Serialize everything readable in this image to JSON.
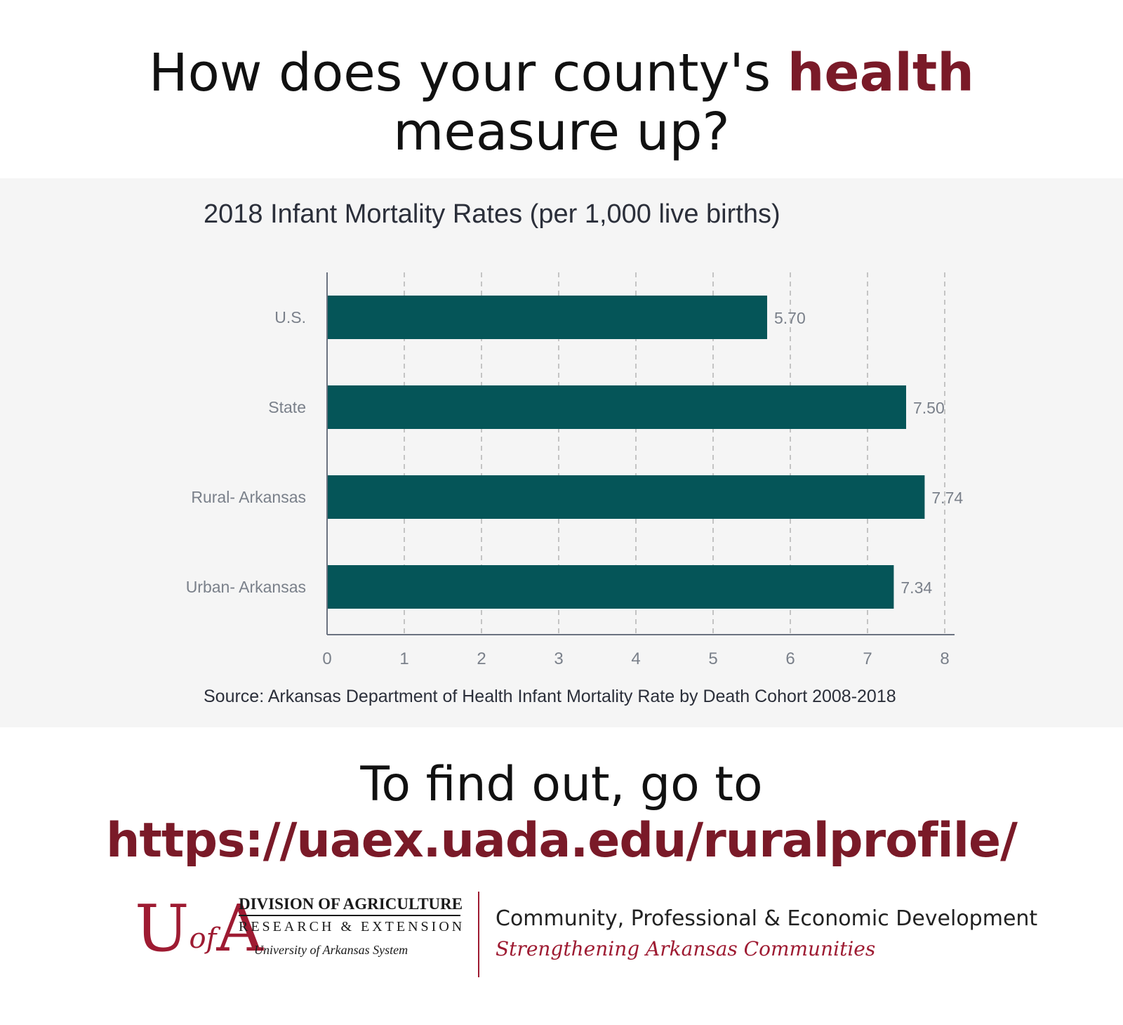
{
  "headline": {
    "part1": "How does your county's ",
    "highlight": "health",
    "part2": "measure up?"
  },
  "chart_data": {
    "type": "bar",
    "orientation": "horizontal",
    "title": "2018 Infant Mortality Rates (per 1,000 live births)",
    "categories": [
      "U.S.",
      "State",
      "Rural- Arkansas",
      "Urban- Arkansas"
    ],
    "values": [
      5.7,
      7.5,
      7.74,
      7.34
    ],
    "value_labels": [
      "5.70",
      "7.50",
      "7.74",
      "7.34"
    ],
    "xlim": [
      0,
      8
    ],
    "xticks": [
      "0",
      "1",
      "2",
      "3",
      "4",
      "5",
      "6",
      "7",
      "8"
    ],
    "grid": "vertical dashed",
    "bar_color": "#055558",
    "source": "Source: Arkansas Department of Health Infant Mortality Rate by Death Cohort 2008-2018"
  },
  "cta": {
    "line1": "To find out, go to",
    "url": "https://uaex.uada.edu/ruralprofile/"
  },
  "footer": {
    "uofa_letters": "UofA",
    "division": "DIVISION OF AGRICULTURE",
    "research": "RESEARCH & EXTENSION",
    "system": "University of Arkansas System",
    "cped": "Community, Professional & Economic Development",
    "tagline": "Strengthening Arkansas Communities"
  },
  "colors": {
    "accent": "#7a1a28",
    "logo_red": "#9e1b32",
    "bar": "#055558",
    "panel": "#f5f5f5"
  }
}
